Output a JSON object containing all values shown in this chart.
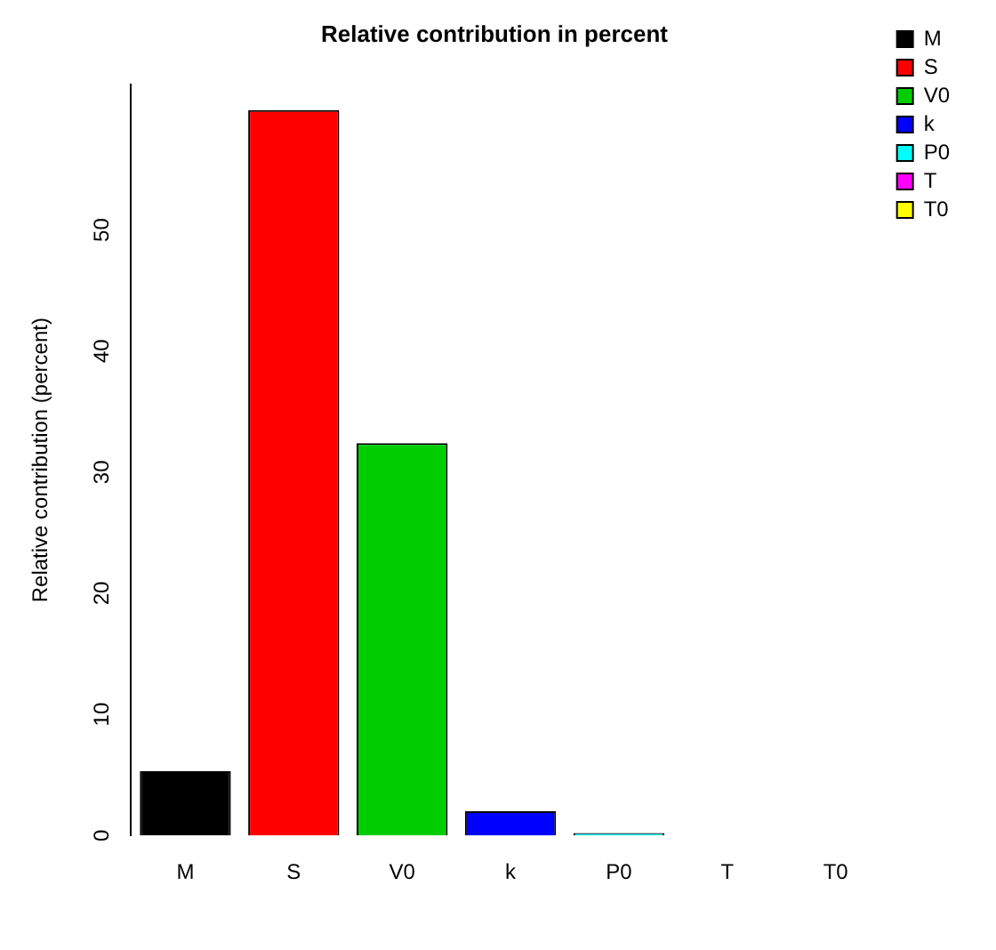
{
  "chart_data": {
    "type": "bar",
    "title": "Relative contribution in percent",
    "ylabel": "Relative contribution (percent)",
    "categories": [
      "M",
      "S",
      "V0",
      "k",
      "P0",
      "T",
      "T0"
    ],
    "series": [
      {
        "name": "M",
        "color": "#000000",
        "values": [
          5.3,
          null,
          null,
          null,
          null,
          null,
          null
        ]
      },
      {
        "name": "S",
        "color": "#ff0000",
        "values": [
          null,
          59.9,
          null,
          null,
          null,
          null,
          null
        ]
      },
      {
        "name": "V0",
        "color": "#00cd00",
        "values": [
          null,
          null,
          32.4,
          null,
          null,
          null,
          null
        ]
      },
      {
        "name": "k",
        "color": "#0000ff",
        "values": [
          null,
          null,
          null,
          2.0,
          null,
          null,
          null
        ]
      },
      {
        "name": "P0",
        "color": "#00ffff",
        "values": [
          null,
          null,
          null,
          null,
          0.2,
          null,
          null
        ]
      },
      {
        "name": "T",
        "color": "#ff00ff",
        "values": [
          null,
          null,
          null,
          null,
          null,
          0,
          null
        ]
      },
      {
        "name": "T0",
        "color": "#ffff00",
        "values": [
          null,
          null,
          null,
          null,
          null,
          null,
          0
        ]
      }
    ],
    "ylim": [
      0,
      62
    ],
    "yticks": [
      0,
      10,
      20,
      30,
      40,
      50
    ],
    "grid": false,
    "legend": "top right"
  }
}
